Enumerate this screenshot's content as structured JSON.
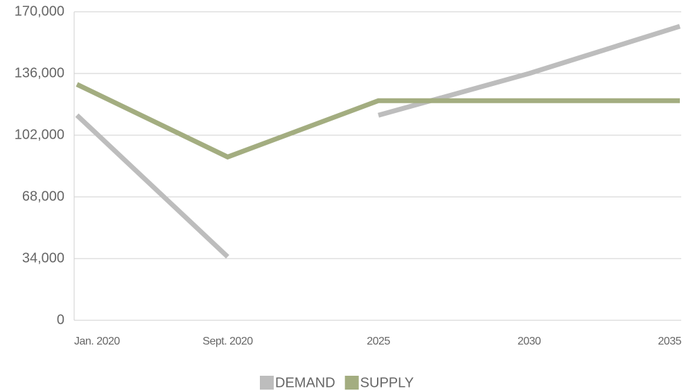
{
  "chart_data": {
    "type": "line",
    "categories": [
      "Jan. 2020",
      "Sept. 2020",
      "2025",
      "2030",
      "2035"
    ],
    "series": [
      {
        "name": "DEMAND",
        "color": "#bdbdbd",
        "values": [
          113000,
          35000,
          113000,
          136000,
          162000
        ],
        "break_after": 1
      },
      {
        "name": "SUPPLY",
        "color": "#a3ad80",
        "values": [
          130000,
          90000,
          121000,
          121000,
          121000
        ]
      }
    ],
    "ylim": [
      0,
      170000
    ],
    "yticks": [
      0,
      {
        "value": 34000,
        "label": "34,000"
      },
      {
        "value": 68000,
        "label": "68,000"
      },
      {
        "value": 102000,
        "label": "102,000"
      },
      {
        "value": 136000,
        "label": "136,000"
      },
      {
        "value": 170000,
        "label": "170,000"
      }
    ],
    "grid": true,
    "legend": "bottom"
  }
}
